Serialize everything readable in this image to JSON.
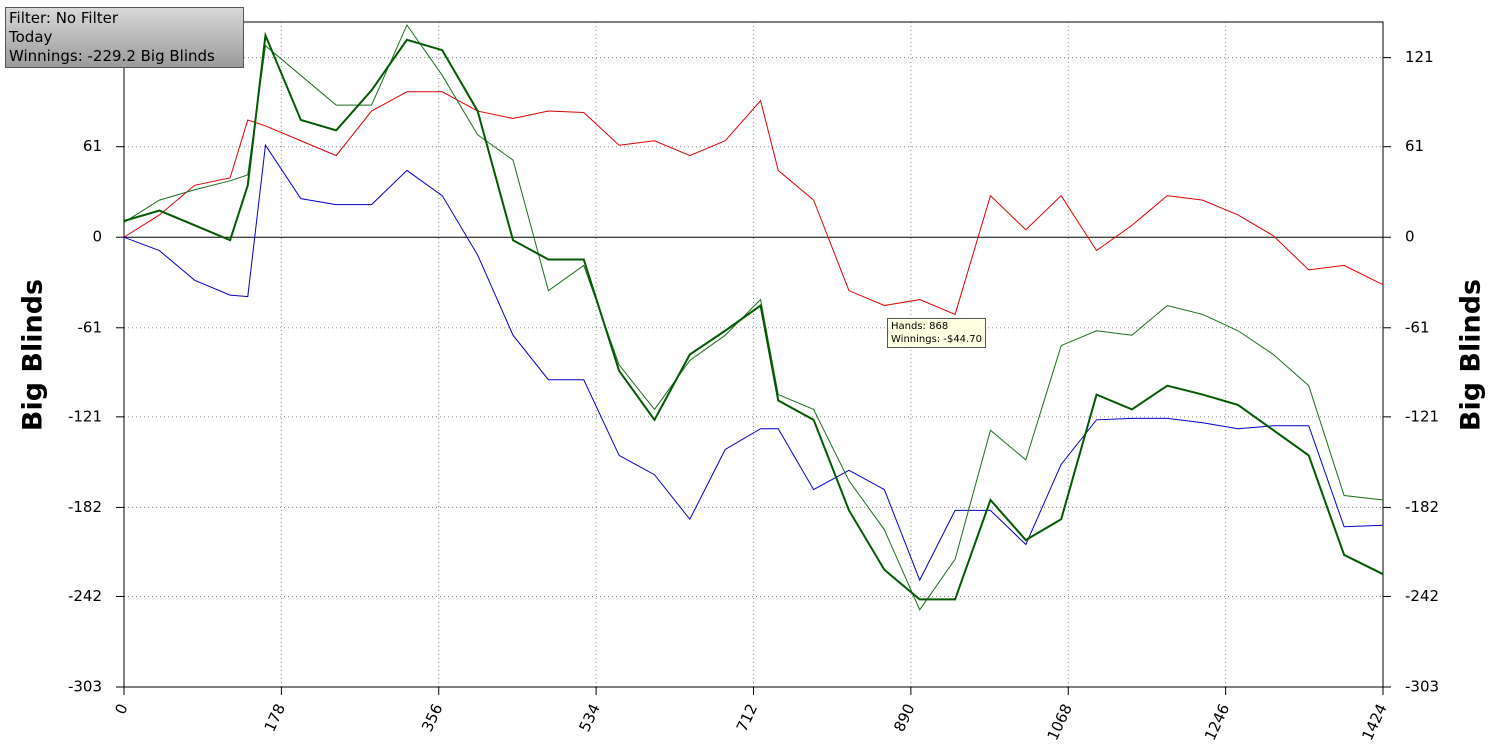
{
  "chart_data": {
    "type": "line",
    "info": [
      "Filter: No Filter",
      "Today",
      "Winnings: -229.2 Big Blinds"
    ],
    "tooltip": [
      "Hands: 868",
      "Winnings: -$44.70"
    ],
    "ylabel": "Big Blinds",
    "x": [
      0,
      40,
      80,
      120,
      140,
      160,
      200,
      240,
      280,
      320,
      360,
      400,
      440,
      480,
      520,
      560,
      600,
      640,
      680,
      720,
      740,
      780,
      820,
      860,
      900,
      940,
      980,
      1020,
      1060,
      1100,
      1140,
      1180,
      1220,
      1260,
      1300,
      1340,
      1380,
      1424
    ],
    "series": [
      {
        "color": "#e00000",
        "width": 1,
        "values": [
          0,
          15,
          35,
          40,
          79,
          75,
          65,
          55,
          85,
          98,
          98,
          85,
          80,
          85,
          84,
          62,
          65,
          55,
          65,
          92,
          45,
          25,
          -36,
          -46,
          -42,
          -52,
          28,
          5,
          28,
          -9,
          8,
          28,
          25,
          15,
          1,
          -22,
          -19,
          -32
        ]
      },
      {
        "color": "#0000cc",
        "width": 1,
        "values": [
          0,
          -9,
          -29,
          -39,
          -40,
          62,
          26,
          22,
          22,
          45,
          28,
          -12,
          -66,
          -96,
          -96,
          -147,
          -160,
          -190,
          -143,
          -129,
          -129,
          -170,
          -157,
          -170,
          -231,
          -184,
          -184,
          -207,
          -153,
          -123,
          -122,
          -122,
          -125,
          -129,
          -127,
          -127,
          -195,
          -194
        ]
      },
      {
        "color": "#1a6e1a",
        "width": 1,
        "values": [
          10,
          25,
          32,
          38,
          42,
          129,
          109,
          89,
          89,
          143,
          109,
          69,
          52,
          -36,
          -19,
          -86,
          -116,
          -83,
          -66,
          -42,
          -106,
          -116,
          -164,
          -197,
          -251,
          -217,
          -130,
          -150,
          -73,
          -63,
          -66,
          -46,
          -52,
          -63,
          -79,
          -100,
          -174,
          -177
        ]
      },
      {
        "color": "#005a00",
        "width": 2,
        "values": [
          11,
          18,
          8,
          -2,
          35,
          136,
          79,
          72,
          99,
          133,
          126,
          85,
          -2,
          -15,
          -15,
          -90,
          -123,
          -79,
          -63,
          -46,
          -110,
          -123,
          -184,
          -224,
          -244,
          -244,
          -177,
          -204,
          -190,
          -106,
          -116,
          -100,
          -106,
          -113,
          -130,
          -147,
          -214,
          -227
        ]
      }
    ],
    "xlim": [
      0,
      1424
    ],
    "xticks": [
      0,
      178,
      356,
      534,
      712,
      890,
      1068,
      1246,
      1424
    ],
    "ylim": [
      -303,
      145
    ],
    "yticks": [
      -303,
      -242,
      -182,
      -121,
      -61,
      0,
      61,
      121
    ],
    "grid": true
  }
}
